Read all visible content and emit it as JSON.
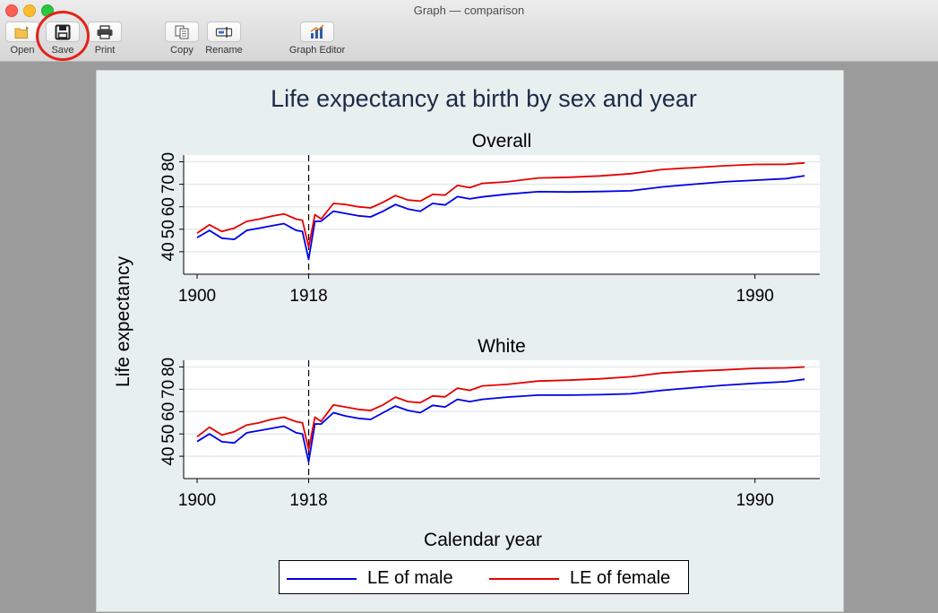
{
  "window": {
    "title": "Graph — comparison"
  },
  "toolbar": {
    "open_label": "Open",
    "save_label": "Save",
    "print_label": "Print",
    "copy_label": "Copy",
    "rename_label": "Rename",
    "graph_editor_label": "Graph Editor"
  },
  "graph": {
    "title": "Life expectancy at birth by sex and year",
    "xlabel": "Calendar year",
    "ylabel": "Life expectancy",
    "legend": {
      "male_label": "LE of male",
      "female_label": "LE of female"
    }
  },
  "chart_data": [
    {
      "type": "line",
      "title": "Overall",
      "xlabel": "Calendar year",
      "ylabel": "Life expectancy",
      "xlim": [
        1900,
        1999
      ],
      "ylim": [
        30,
        83
      ],
      "x_ticks": [
        "1900",
        "1918",
        "1990"
      ],
      "y_ticks": [
        "40",
        "50",
        "60",
        "70",
        "80"
      ],
      "vline": 1918,
      "grid": true,
      "legend_position": "bottom",
      "x": [
        1900,
        1902,
        1904,
        1906,
        1908,
        1910,
        1912,
        1914,
        1916,
        1917,
        1918,
        1919,
        1920,
        1922,
        1924,
        1926,
        1928,
        1930,
        1932,
        1934,
        1936,
        1938,
        1940,
        1942,
        1944,
        1946,
        1950,
        1955,
        1960,
        1965,
        1970,
        1975,
        1980,
        1985,
        1990,
        1995,
        1998
      ],
      "series": [
        {
          "name": "LE of male",
          "color": "#0000e6",
          "values": [
            46.3,
            49.5,
            46,
            45.5,
            49.5,
            50.5,
            51.5,
            52.5,
            49.5,
            49,
            36.6,
            53.5,
            53.6,
            58,
            57,
            56,
            55.5,
            58,
            61,
            59,
            58,
            61.5,
            60.8,
            64.5,
            63.5,
            64.4,
            65.6,
            66.7,
            66.6,
            66.8,
            67.1,
            68.8,
            70,
            71.1,
            71.8,
            72.5,
            73.8
          ]
        },
        {
          "name": "LE of female",
          "color": "#e60000",
          "values": [
            48.3,
            52,
            49,
            50.5,
            53.5,
            54.5,
            55.8,
            56.8,
            54.5,
            54,
            42.2,
            56.5,
            54.6,
            61.5,
            61,
            60,
            59.5,
            62,
            65,
            63,
            62.5,
            65.5,
            65.2,
            69.5,
            68.5,
            70.4,
            71.1,
            72.8,
            73.1,
            73.7,
            74.7,
            76.6,
            77.4,
            78.2,
            78.8,
            78.9,
            79.5
          ]
        }
      ]
    },
    {
      "type": "line",
      "title": "White",
      "xlabel": "Calendar year",
      "ylabel": "Life expectancy",
      "xlim": [
        1900,
        1999
      ],
      "ylim": [
        30,
        83
      ],
      "x_ticks": [
        "1900",
        "1918",
        "1990"
      ],
      "y_ticks": [
        "40",
        "50",
        "60",
        "70",
        "80"
      ],
      "vline": 1918,
      "grid": true,
      "legend_position": "bottom",
      "x": [
        1900,
        1902,
        1904,
        1906,
        1908,
        1910,
        1912,
        1914,
        1916,
        1917,
        1918,
        1919,
        1920,
        1922,
        1924,
        1926,
        1928,
        1930,
        1932,
        1934,
        1936,
        1938,
        1940,
        1942,
        1944,
        1946,
        1950,
        1955,
        1960,
        1965,
        1970,
        1975,
        1980,
        1985,
        1990,
        1995,
        1998
      ],
      "series": [
        {
          "name": "LE of male",
          "color": "#0000e6",
          "values": [
            46.6,
            50,
            46.5,
            46,
            50.5,
            51.5,
            52.5,
            53.5,
            50.5,
            50,
            37.5,
            54.5,
            54.4,
            59.5,
            58,
            57,
            56.5,
            59.5,
            62.5,
            60.5,
            59.5,
            62.8,
            62.1,
            65.5,
            64.5,
            65.5,
            66.5,
            67.4,
            67.4,
            67.6,
            68,
            69.5,
            70.7,
            71.8,
            72.7,
            73.4,
            74.5
          ]
        },
        {
          "name": "LE of female",
          "color": "#e60000",
          "values": [
            48.7,
            53,
            49.5,
            51,
            54,
            55,
            56.5,
            57.5,
            55.5,
            55,
            43,
            57.5,
            55.6,
            63,
            62,
            61,
            60.5,
            63,
            66.5,
            64.5,
            64,
            67,
            66.6,
            70.5,
            69.5,
            71.5,
            72.2,
            73.7,
            74.1,
            74.7,
            75.6,
            77.3,
            78.1,
            78.7,
            79.4,
            79.6,
            80
          ]
        }
      ]
    }
  ]
}
